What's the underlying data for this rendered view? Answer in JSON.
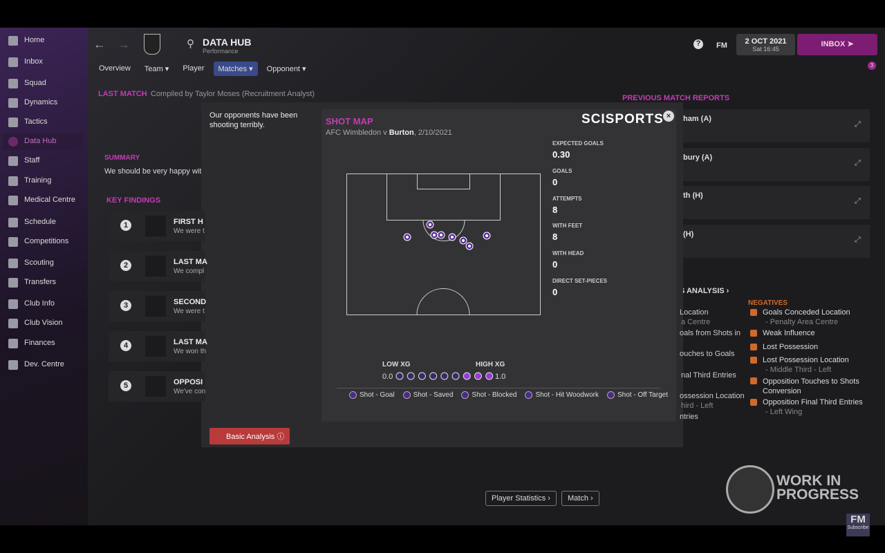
{
  "sidebar": {
    "items": [
      "Home",
      "Inbox",
      "Squad",
      "Dynamics",
      "Tactics",
      "Data Hub",
      "Staff",
      "Training",
      "Medical Centre",
      "Schedule",
      "Competitions",
      "Scouting",
      "Transfers",
      "Club Info",
      "Club Vision",
      "Finances",
      "Dev. Centre"
    ]
  },
  "header": {
    "title": "DATA HUB",
    "subtitle": "Performance",
    "tabs": [
      "Overview",
      "Team",
      "Player",
      "Matches",
      "Opponent"
    ],
    "fm": "FM",
    "date": "2 OCT 2021",
    "time": "Sat 16:45",
    "inbox": "INBOX",
    "badge": "3"
  },
  "report": {
    "heading": "LAST MATCH",
    "compiled": "Compiled by Taylor Moses (Recruitment Analyst)",
    "summary_heading": "SUMMARY",
    "summary": "We should be very happy with",
    "findings_heading": "KEY FINDINGS",
    "findings": [
      {
        "number": "1",
        "title": "FIRST H",
        "text": "We were t"
      },
      {
        "number": "2",
        "title": "LAST MA",
        "text": "We compl"
      },
      {
        "number": "3",
        "title": "SECOND",
        "text": "We were t"
      },
      {
        "number": "4",
        "title": "LAST MA",
        "text": "We won th"
      },
      {
        "number": "5",
        "title": "OPPOSI",
        "text": "We've con"
      }
    ]
  },
  "previous": {
    "heading": "PREVIOUS MATCH REPORTS",
    "items": [
      "ham (A)",
      "bury (A)",
      "th (H)",
      "(H)"
    ]
  },
  "analysis": {
    "heading": "S ANALYSIS",
    "positives": [
      "Location",
      "a Centre",
      "oals from Shots in",
      "ouches to Goals",
      "nal Third Entries",
      "ossession Location",
      "hird - Left",
      "ntries"
    ],
    "negatives_heading": "NEGATIVES",
    "negatives": [
      {
        "title": "Goals Conceded Location",
        "detail": "- Penalty Area Centre"
      },
      {
        "title": "Weak Influence",
        "detail": null
      },
      {
        "title": "Lost Possession",
        "detail": null
      },
      {
        "title": "Lost Possession Location",
        "detail": "- Middle Third - Left"
      },
      {
        "title": "Opposition Touches to Shots Conversion",
        "detail": null
      },
      {
        "title": "Opposition Final Third Entries",
        "detail": "- Left Wing"
      }
    ]
  },
  "buttons": [
    "Player Statistics",
    "Match"
  ],
  "watermark": {
    "line1": "WORK IN",
    "line2": "PROGRESS",
    "fm": "FM",
    "subscribe": "Subscribe"
  },
  "modal": {
    "comment": "Our opponents have been shooting terribly.",
    "button": "Basic Analysis",
    "shot_map": {
      "title": "SHOT MAP",
      "home": "AFC Wimbledon v ",
      "away": "Burton",
      "date": ", 2/10/2021",
      "logo": "SCISPORTS",
      "stats": [
        {
          "label": "EXPECTED GOALS",
          "value": "0.30"
        },
        {
          "label": "GOALS",
          "value": "0"
        },
        {
          "label": "ATTEMPTS",
          "value": "8"
        },
        {
          "label": "WITH FEET",
          "value": "8"
        },
        {
          "label": "WITH HEAD",
          "value": "0"
        },
        {
          "label": "DIRECT SET-PIECES",
          "value": "0"
        }
      ],
      "scale": {
        "low_label": "LOW XG",
        "high_label": "HIGH XG",
        "min": "0.0",
        "max": "1.0"
      },
      "legend": [
        "Shot - Goal",
        "Shot - Saved",
        "Shot - Blocked",
        "Shot - Hit Woodwork",
        "Shot - Off Target"
      ]
    }
  }
}
